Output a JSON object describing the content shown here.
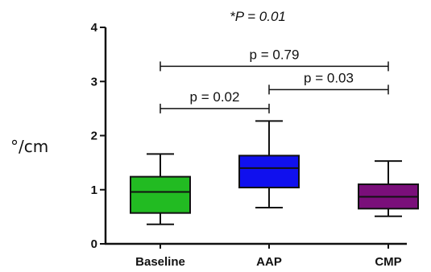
{
  "chart_data": {
    "type": "box",
    "title": "*P = 0.01",
    "ylabel": "°/cm",
    "xlabel": "",
    "ylim": [
      0,
      4
    ],
    "yticks": [
      0,
      1,
      2,
      3,
      4
    ],
    "grid": false,
    "categories": [
      "Baseline",
      "AAP",
      "CMP"
    ],
    "boxes": [
      {
        "category": "Baseline",
        "min": 0.36,
        "q1": 0.57,
        "median": 0.96,
        "q3": 1.24,
        "max": 1.66,
        "color": "#22bb22"
      },
      {
        "category": "AAP",
        "min": 0.67,
        "q1": 1.04,
        "median": 1.4,
        "q3": 1.63,
        "max": 2.27,
        "color": "#1010ee"
      },
      {
        "category": "CMP",
        "min": 0.51,
        "q1": 0.65,
        "median": 0.87,
        "q3": 1.1,
        "max": 1.53,
        "color": "#7a0f7a"
      }
    ],
    "annotations": [
      {
        "from": "Baseline",
        "to": "AAP",
        "y": 2.5,
        "label": "p = 0.02"
      },
      {
        "from": "AAP",
        "to": "CMP",
        "y": 2.85,
        "label": "p = 0.03"
      },
      {
        "from": "Baseline",
        "to": "CMP",
        "y": 3.28,
        "label": "p = 0.79"
      }
    ]
  }
}
